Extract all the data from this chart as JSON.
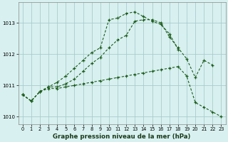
{
  "x": [
    0,
    1,
    2,
    3,
    4,
    5,
    6,
    7,
    8,
    9,
    10,
    11,
    12,
    13,
    14,
    15,
    16,
    17,
    18,
    19,
    20,
    21,
    22,
    23
  ],
  "line_top": [
    1010.7,
    1010.5,
    1010.8,
    1010.95,
    1011.1,
    1011.3,
    1011.55,
    1011.8,
    1012.05,
    1012.2,
    1013.1,
    1013.15,
    1013.3,
    1013.35,
    1013.2,
    1013.05,
    1012.95,
    1012.65,
    1012.15,
    null,
    null,
    null,
    null,
    null
  ],
  "line_mid": [
    1010.7,
    1010.5,
    1010.8,
    1010.95,
    1010.95,
    1011.05,
    1011.2,
    1011.45,
    1011.7,
    1011.9,
    1012.2,
    1012.45,
    1012.6,
    1013.05,
    1013.1,
    1013.1,
    1013.0,
    1012.55,
    1012.2,
    1011.85,
    1011.25,
    1011.8,
    1011.65,
    null
  ],
  "line_bot": [
    1010.7,
    1010.5,
    1010.8,
    1010.9,
    1010.9,
    1010.95,
    1011.0,
    1011.05,
    1011.1,
    1011.15,
    1011.2,
    1011.25,
    1011.3,
    1011.35,
    1011.4,
    1011.45,
    1011.5,
    1011.55,
    1011.6,
    1011.3,
    1010.45,
    1010.3,
    1010.15,
    1010.0
  ],
  "line_color": "#1a5c1a",
  "bg_color": "#d8f0f0",
  "grid_color": "#aacccc",
  "title": "Graphe pression niveau de la mer (hPa)",
  "yticks": [
    1010,
    1011,
    1012,
    1013
  ],
  "xticks": [
    0,
    1,
    2,
    3,
    4,
    5,
    6,
    7,
    8,
    9,
    10,
    11,
    12,
    13,
    14,
    15,
    16,
    17,
    18,
    19,
    20,
    21,
    22,
    23
  ],
  "ylim": [
    1009.75,
    1013.65
  ],
  "xlim": [
    -0.5,
    23.5
  ]
}
